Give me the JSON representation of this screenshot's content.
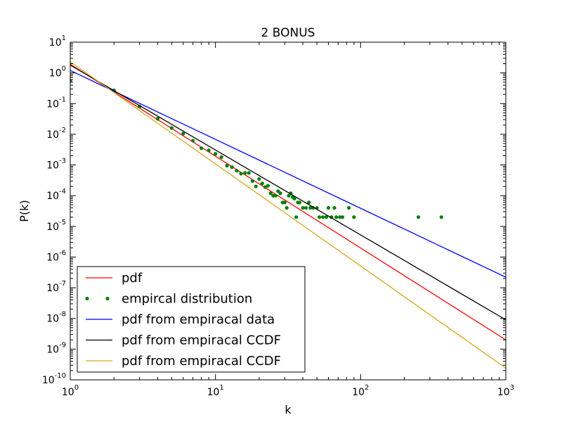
{
  "chart_data": {
    "type": "line",
    "title": "2 BONUS",
    "xlabel": "k",
    "ylabel": "P(k)",
    "xscale": "log",
    "yscale": "log",
    "xlim": [
      1,
      1000
    ],
    "ylim": [
      1e-10,
      10
    ],
    "grid": false,
    "legend_position": "lower-left",
    "x_ticks": [
      {
        "base": "10",
        "exp": "0",
        "value": 1
      },
      {
        "base": "10",
        "exp": "1",
        "value": 10
      },
      {
        "base": "10",
        "exp": "2",
        "value": 100
      },
      {
        "base": "10",
        "exp": "3",
        "value": 1000
      }
    ],
    "y_ticks": [
      {
        "base": "10",
        "exp": "-10",
        "value": 1e-10
      },
      {
        "base": "10",
        "exp": "-9",
        "value": 1e-09
      },
      {
        "base": "10",
        "exp": "-8",
        "value": 1e-08
      },
      {
        "base": "10",
        "exp": "-7",
        "value": 1e-07
      },
      {
        "base": "10",
        "exp": "-6",
        "value": 1e-06
      },
      {
        "base": "10",
        "exp": "-5",
        "value": 1e-05
      },
      {
        "base": "10",
        "exp": "-4",
        "value": 0.0001
      },
      {
        "base": "10",
        "exp": "-3",
        "value": 0.001
      },
      {
        "base": "10",
        "exp": "-2",
        "value": 0.01
      },
      {
        "base": "10",
        "exp": "-1",
        "value": 0.1
      },
      {
        "base": "10",
        "exp": "0",
        "value": 1
      },
      {
        "base": "10",
        "exp": "1",
        "value": 10
      }
    ],
    "series": [
      {
        "name": "pdf",
        "kind": "line",
        "color": "#ff0000",
        "x": [
          1,
          1000
        ],
        "y": [
          1.9,
          2e-09
        ]
      },
      {
        "name": "empircal distribution",
        "kind": "scatter",
        "color": "#008000",
        "points": [
          [
            1,
            0.55
          ],
          [
            2,
            0.27
          ],
          [
            3,
            0.08
          ],
          [
            4,
            0.032
          ],
          [
            5,
            0.016
          ],
          [
            6,
            0.0105
          ],
          [
            7,
            0.0062
          ],
          [
            8,
            0.0035
          ],
          [
            9,
            0.003
          ],
          [
            10,
            0.0023
          ],
          [
            11,
            0.0018
          ],
          [
            12,
            0.00095
          ],
          [
            13,
            0.00085
          ],
          [
            14,
            0.00065
          ],
          [
            15,
            0.00052
          ],
          [
            16,
            0.00055
          ],
          [
            17,
            0.00055
          ],
          [
            18,
            0.0003
          ],
          [
            19,
            0.0002
          ],
          [
            20,
            0.00035
          ],
          [
            21,
            0.00025
          ],
          [
            22,
            0.00019
          ],
          [
            23,
            0.00021
          ],
          [
            24,
            0.00012
          ],
          [
            25,
            0.0001
          ],
          [
            26,
            0.0001
          ],
          [
            27,
            0.00014
          ],
          [
            28,
            0.00012
          ],
          [
            29,
            6e-05
          ],
          [
            30,
            6e-05
          ],
          [
            31,
            4e-05
          ],
          [
            32,
            0.0001
          ],
          [
            33,
            0.00012
          ],
          [
            34,
            9e-05
          ],
          [
            35,
            8e-05
          ],
          [
            36,
            2e-05
          ],
          [
            37,
            6e-05
          ],
          [
            38,
            6e-05
          ],
          [
            40,
            4e-05
          ],
          [
            42,
            4e-05
          ],
          [
            44,
            6e-05
          ],
          [
            45,
            4e-05
          ],
          [
            47,
            4e-05
          ],
          [
            50,
            4e-05
          ],
          [
            52,
            2e-05
          ],
          [
            55,
            2e-05
          ],
          [
            58,
            2e-05
          ],
          [
            60,
            4e-05
          ],
          [
            63,
            2e-05
          ],
          [
            66,
            4e-05
          ],
          [
            68,
            2e-05
          ],
          [
            72,
            2e-05
          ],
          [
            75,
            2e-05
          ],
          [
            83,
            4e-05
          ],
          [
            90,
            2e-05
          ],
          [
            250,
            2e-05
          ],
          [
            360,
            2e-05
          ]
        ]
      },
      {
        "name": "pdf from empiracal data",
        "kind": "line",
        "color": "#0000ff",
        "x": [
          1,
          1000
        ],
        "y": [
          1.2,
          2.2e-07
        ]
      },
      {
        "name": "pdf from empiracal CCDF",
        "kind": "line",
        "color": "#000000",
        "x": [
          1,
          1000
        ],
        "y": [
          1.8,
          9e-09
        ]
      },
      {
        "name": "pdf from empiracal CCDF",
        "kind": "line",
        "color": "#daa520",
        "x": [
          1,
          1000
        ],
        "y": [
          2.3,
          2.4e-10
        ]
      }
    ]
  }
}
